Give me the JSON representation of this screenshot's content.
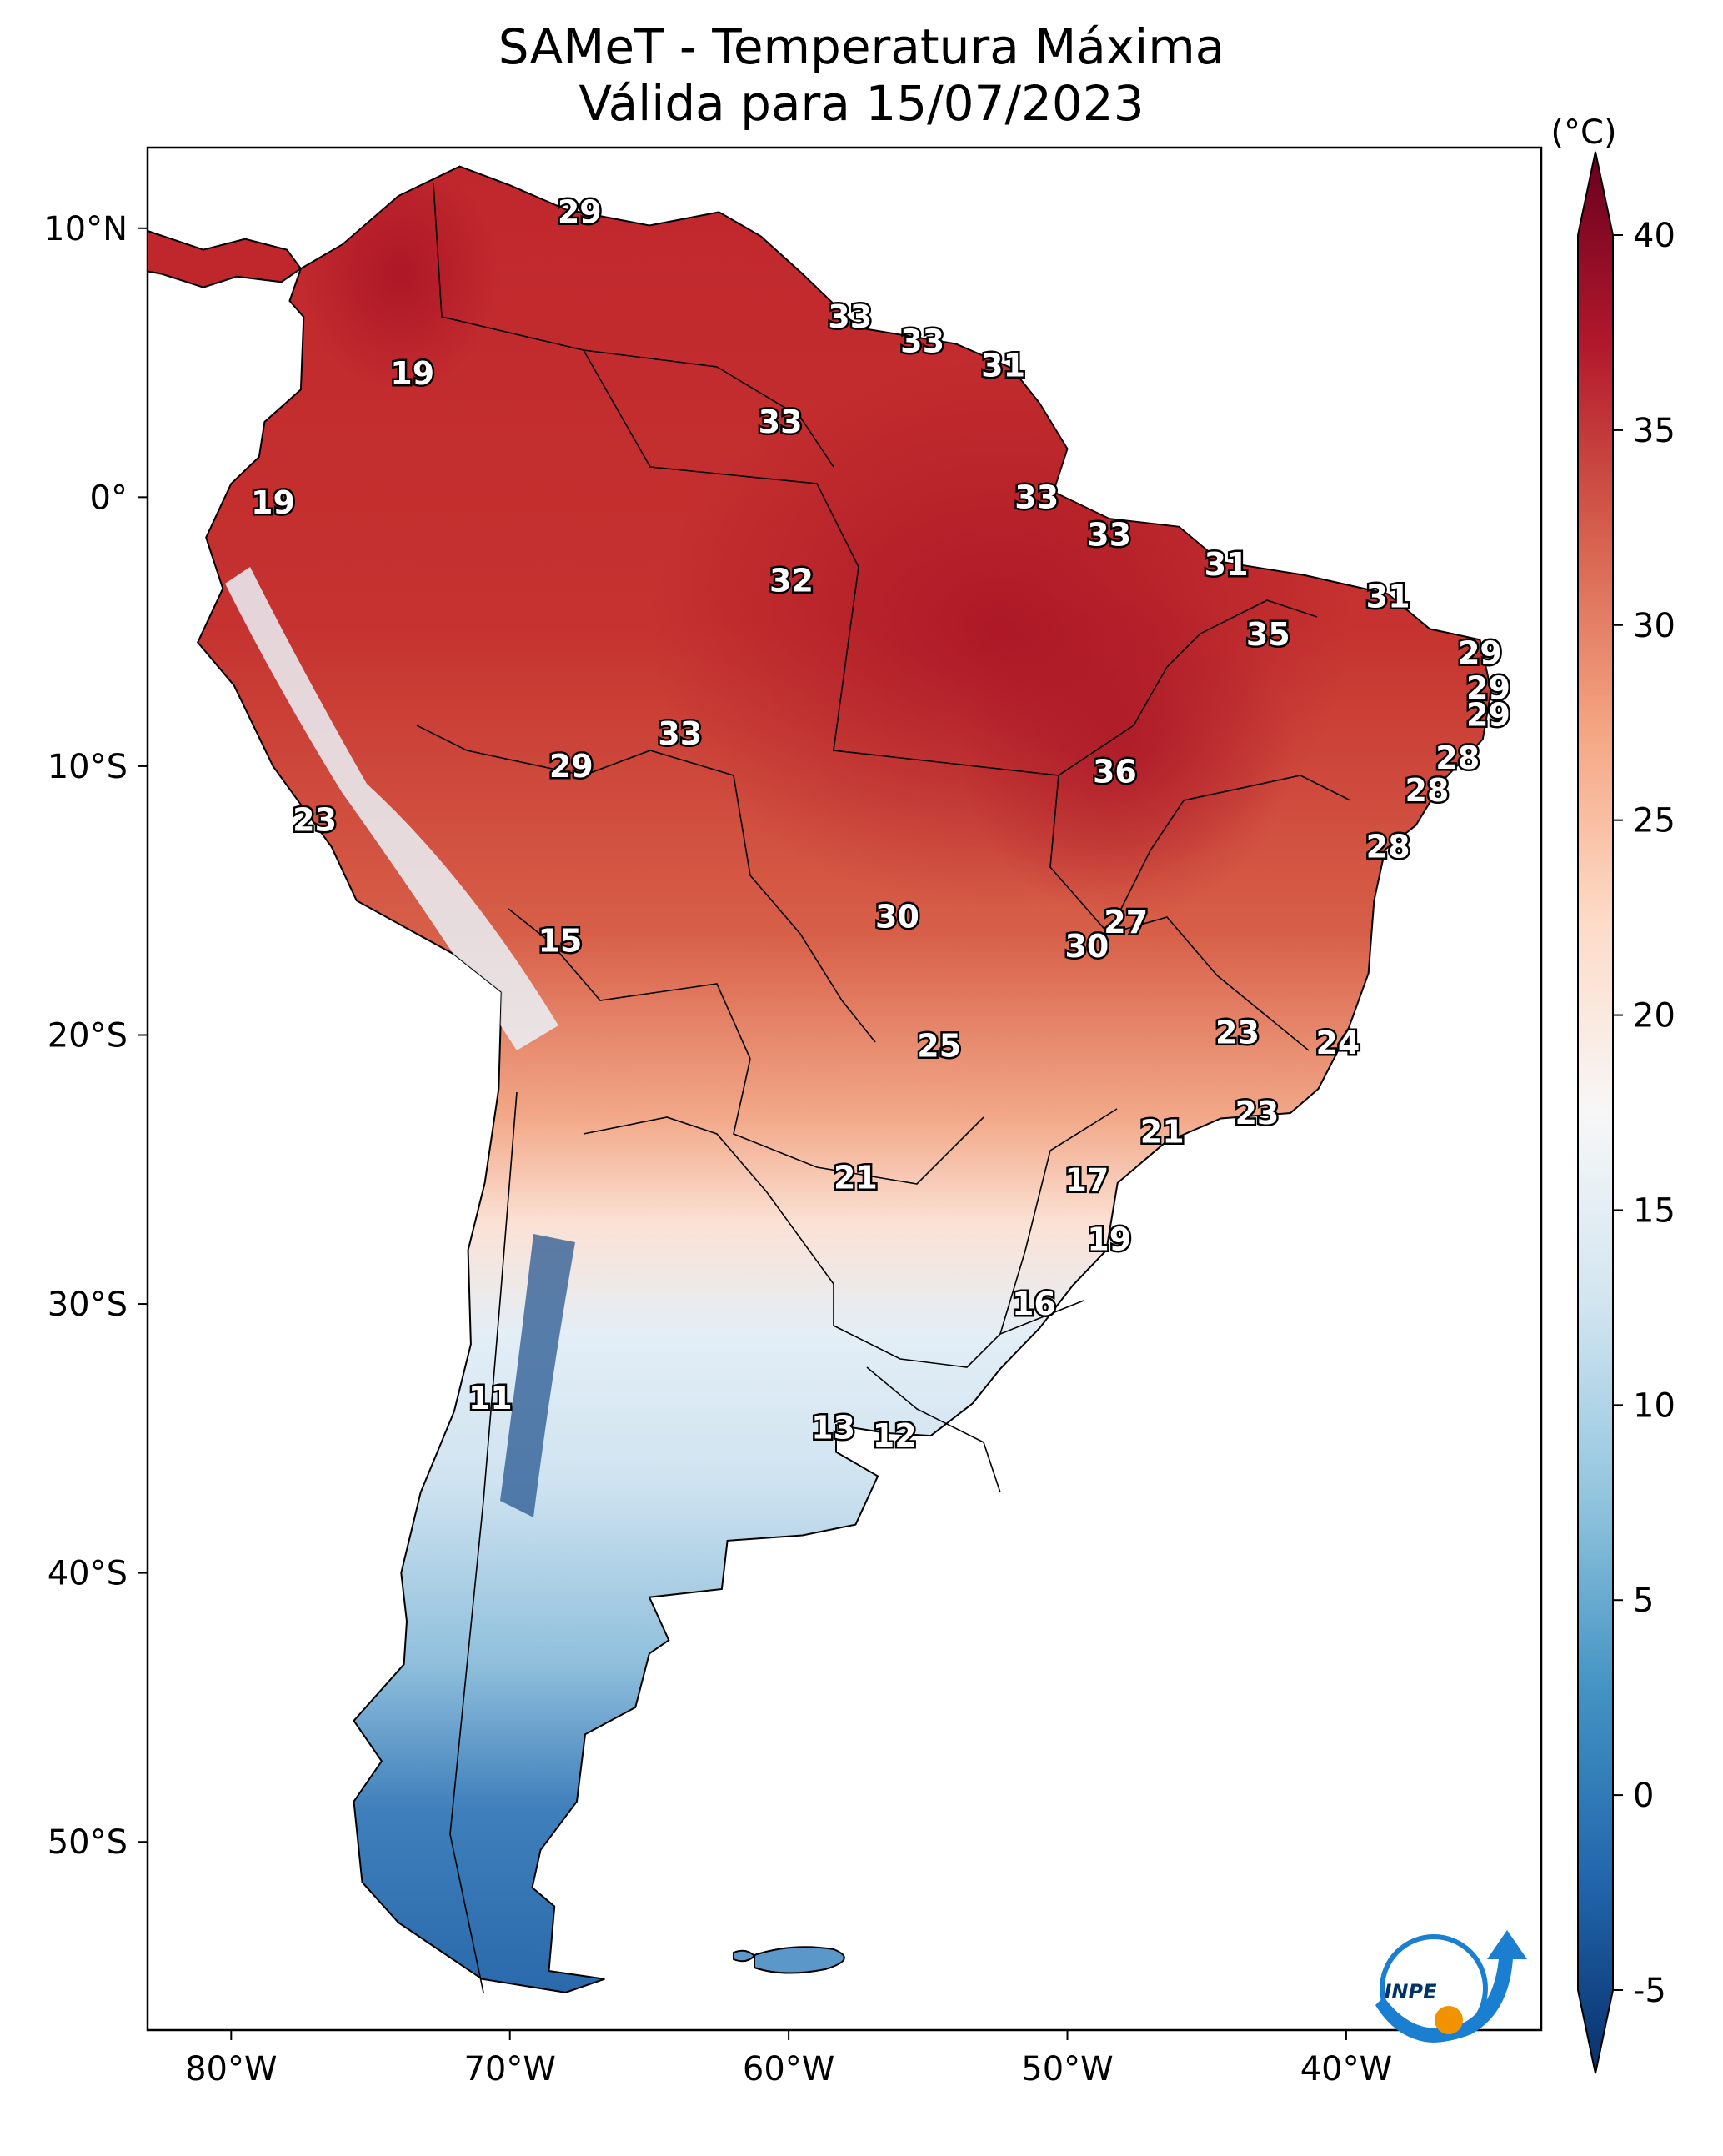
{
  "title": {
    "line1": "SAMeT - Temperatura Máxima",
    "line2": "Válida para 15/07/2023"
  },
  "map": {
    "lon_range": [
      -83,
      -33
    ],
    "lat_range": [
      -57,
      13
    ],
    "x_ticks": [
      {
        "lon": -80,
        "label": "80°W"
      },
      {
        "lon": -70,
        "label": "70°W"
      },
      {
        "lon": -60,
        "label": "60°W"
      },
      {
        "lon": -50,
        "label": "50°W"
      },
      {
        "lon": -40,
        "label": "40°W"
      }
    ],
    "y_ticks": [
      {
        "lat": 10,
        "label": "10°N"
      },
      {
        "lat": 0,
        "label": "0°"
      },
      {
        "lat": -10,
        "label": "10°S"
      },
      {
        "lat": -20,
        "label": "20°S"
      },
      {
        "lat": -30,
        "label": "30°S"
      },
      {
        "lat": -40,
        "label": "40°S"
      },
      {
        "lat": -50,
        "label": "50°S"
      }
    ]
  },
  "chart_data": {
    "type": "heatmap",
    "title": "SAMeT - Temperatura Máxima",
    "subtitle": "Válida para 15/07/2023",
    "colorbar": {
      "unit": "(°C)",
      "min": -5,
      "max": 40,
      "ticks": [
        "-5",
        "0",
        "5",
        "10",
        "15",
        "20",
        "25",
        "30",
        "35",
        "40"
      ],
      "colormap": [
        "#08306b",
        "#2166ac",
        "#4393c3",
        "#92c5de",
        "#d1e5f0",
        "#f7f7f7",
        "#fddbc7",
        "#f4a582",
        "#d6604d",
        "#b2182b",
        "#67001f"
      ]
    },
    "station_values": [
      {
        "lon": -67.5,
        "lat": 10.6,
        "value": "29"
      },
      {
        "lon": -73.5,
        "lat": 4.6,
        "value": "19"
      },
      {
        "lon": -78.5,
        "lat": -0.2,
        "value": "19"
      },
      {
        "lon": -57.8,
        "lat": 6.7,
        "value": "33"
      },
      {
        "lon": -55.2,
        "lat": 5.8,
        "value": "33"
      },
      {
        "lon": -52.3,
        "lat": 4.9,
        "value": "31"
      },
      {
        "lon": -60.3,
        "lat": 2.8,
        "value": "33"
      },
      {
        "lon": -51.1,
        "lat": 0.0,
        "value": "33"
      },
      {
        "lon": -48.5,
        "lat": -1.4,
        "value": "33"
      },
      {
        "lon": -44.3,
        "lat": -2.5,
        "value": "31"
      },
      {
        "lon": -38.5,
        "lat": -3.7,
        "value": "31"
      },
      {
        "lon": -59.9,
        "lat": -3.1,
        "value": "32"
      },
      {
        "lon": -42.8,
        "lat": -5.1,
        "value": "35"
      },
      {
        "lon": -35.2,
        "lat": -5.8,
        "value": "29"
      },
      {
        "lon": -34.9,
        "lat": -7.1,
        "value": "29"
      },
      {
        "lon": -34.9,
        "lat": -8.1,
        "value": "29"
      },
      {
        "lon": -63.9,
        "lat": -8.8,
        "value": "33"
      },
      {
        "lon": -67.8,
        "lat": -10.0,
        "value": "29"
      },
      {
        "lon": -48.3,
        "lat": -10.2,
        "value": "36"
      },
      {
        "lon": -36.0,
        "lat": -9.7,
        "value": "28"
      },
      {
        "lon": -37.1,
        "lat": -10.9,
        "value": "28"
      },
      {
        "lon": -38.5,
        "lat": -13.0,
        "value": "28"
      },
      {
        "lon": -77.0,
        "lat": -12.0,
        "value": "23"
      },
      {
        "lon": -68.2,
        "lat": -16.5,
        "value": "15"
      },
      {
        "lon": -56.1,
        "lat": -15.6,
        "value": "30"
      },
      {
        "lon": -49.3,
        "lat": -16.7,
        "value": "30"
      },
      {
        "lon": -47.9,
        "lat": -15.8,
        "value": "27"
      },
      {
        "lon": -43.9,
        "lat": -19.9,
        "value": "23"
      },
      {
        "lon": -40.3,
        "lat": -20.3,
        "value": "24"
      },
      {
        "lon": -54.6,
        "lat": -20.4,
        "value": "25"
      },
      {
        "lon": -43.2,
        "lat": -22.9,
        "value": "23"
      },
      {
        "lon": -46.6,
        "lat": -23.6,
        "value": "21"
      },
      {
        "lon": -57.6,
        "lat": -25.3,
        "value": "21"
      },
      {
        "lon": -49.3,
        "lat": -25.4,
        "value": "17"
      },
      {
        "lon": -48.5,
        "lat": -27.6,
        "value": "19"
      },
      {
        "lon": -51.2,
        "lat": -30.0,
        "value": "16"
      },
      {
        "lon": -70.7,
        "lat": -33.5,
        "value": "11"
      },
      {
        "lon": -58.4,
        "lat": -34.6,
        "value": "13"
      },
      {
        "lon": -56.2,
        "lat": -34.9,
        "value": "12"
      }
    ]
  },
  "logo": {
    "text": "INPE"
  }
}
